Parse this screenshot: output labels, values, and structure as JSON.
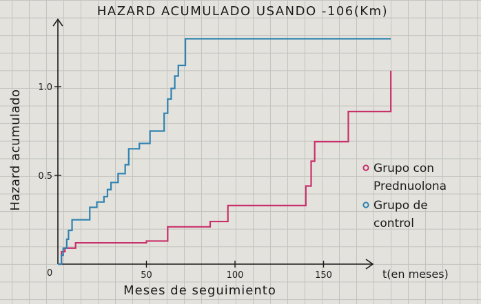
{
  "chart_data": {
    "type": "line",
    "step": true,
    "title": "HAZARD ACUMULADO USANDO -106(Km)",
    "xlabel": "Meses de seguimiento",
    "x_unit_label": "t(en meses)",
    "ylabel": "Hazard acumulado",
    "origin_label": "0",
    "x_ticks": [
      {
        "value": 50,
        "label": "50"
      },
      {
        "value": 100,
        "label": "100"
      },
      {
        "value": 150,
        "label": "150"
      }
    ],
    "y_ticks": [
      {
        "value": 0.5,
        "label": "0.5"
      },
      {
        "value": 1.0,
        "label": "1.0"
      }
    ],
    "xlim": [
      0,
      175
    ],
    "ylim": [
      0,
      1.3
    ],
    "legend_position": "right",
    "grid": true,
    "series": [
      {
        "name": "Grupo con Prednuolona",
        "color": "#c8306a",
        "x": [
          0,
          2,
          4,
          10,
          50,
          62,
          86,
          96,
          140,
          143,
          145,
          164,
          188
        ],
        "y": [
          0,
          0.07,
          0.09,
          0.12,
          0.13,
          0.21,
          0.24,
          0.33,
          0.44,
          0.58,
          0.69,
          0.86,
          1.09
        ]
      },
      {
        "name": "Grupo de control",
        "color": "#2e82b0",
        "x": [
          0,
          2,
          3,
          5,
          6,
          8,
          18,
          22,
          26,
          28,
          30,
          34,
          38,
          40,
          46,
          52,
          60,
          62,
          64,
          66,
          68,
          72,
          188
        ],
        "y": [
          0,
          0.05,
          0.09,
          0.14,
          0.19,
          0.25,
          0.32,
          0.35,
          0.38,
          0.42,
          0.46,
          0.51,
          0.56,
          0.65,
          0.68,
          0.75,
          0.85,
          0.93,
          0.99,
          1.06,
          1.12,
          1.27,
          1.27
        ]
      }
    ]
  }
}
